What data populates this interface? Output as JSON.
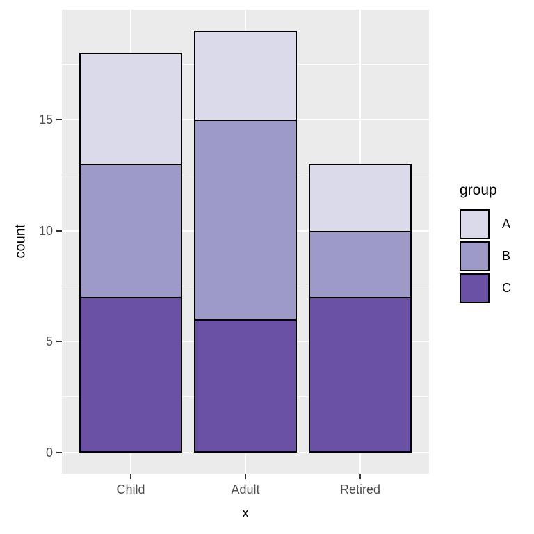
{
  "chart_data": {
    "type": "bar",
    "stacked": true,
    "title": "",
    "xlabel": "x",
    "ylabel": "count",
    "categories": [
      "Child",
      "Adult",
      "Retired"
    ],
    "series": [
      {
        "name": "A",
        "color": "#DADAEB",
        "values": [
          5,
          4,
          3
        ]
      },
      {
        "name": "B",
        "color": "#9E9AC8",
        "values": [
          6,
          9,
          3
        ]
      },
      {
        "name": "C",
        "color": "#6A51A3",
        "values": [
          7,
          6,
          7
        ]
      }
    ],
    "stack_order_bottom_to_top": [
      "C",
      "B",
      "A"
    ],
    "stack_totals": [
      18,
      19,
      13
    ],
    "y_ticks": [
      0,
      5,
      10,
      15
    ],
    "y_minor_ticks": [
      2.5,
      7.5,
      12.5,
      17.5
    ],
    "ylim": [
      0,
      19
    ],
    "grid": true,
    "legend": {
      "title": "group",
      "position": "right",
      "entries": [
        "A",
        "B",
        "C"
      ]
    }
  },
  "style": {
    "panel_bg": "#EBEBEB",
    "page_bg": "#FFFFFF",
    "grid_color": "#FFFFFF",
    "bar_border": "#000000",
    "axis_text_color": "#4D4D4D",
    "axis_title_color": "#000000",
    "tick_color": "#333333"
  }
}
